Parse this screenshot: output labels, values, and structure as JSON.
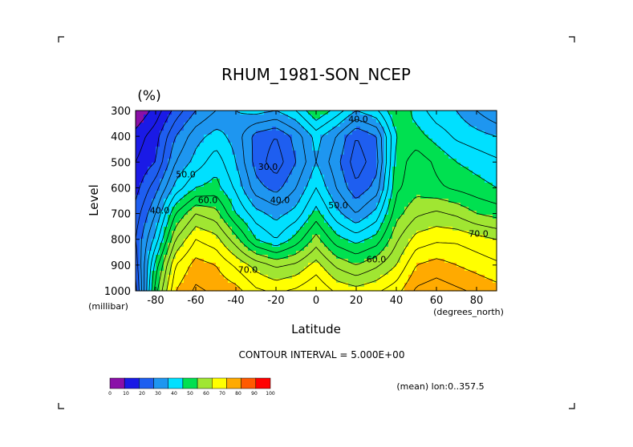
{
  "chart_data": {
    "type": "heatmap",
    "subtype": "filled-contour",
    "title": "RHUM_1981-SON_NCEP",
    "units_label": "(%)",
    "xlabel": "Latitude",
    "ylabel": "Level",
    "x_unit_label": "(degrees_north)",
    "y_unit_label": "(millibar)",
    "xlim": [
      -90,
      90
    ],
    "ylim": [
      1000,
      300
    ],
    "x_ticks": [
      -80,
      -60,
      -40,
      -20,
      0,
      20,
      40,
      60,
      80
    ],
    "x_tick_labels": [
      "-80",
      "-60",
      "-40",
      "-20",
      "0",
      "20",
      "40",
      "60",
      "80"
    ],
    "y_ticks": [
      300,
      400,
      500,
      600,
      700,
      800,
      900,
      1000
    ],
    "y_tick_labels": [
      "300",
      "400",
      "500",
      "600",
      "700",
      "800",
      "900",
      "1000"
    ],
    "contour_interval_text": "CONTOUR INTERVAL = 5.000E+00",
    "mean_text": "(mean) lon:0..357.5",
    "contour_labels": [
      {
        "text": "30.0",
        "lat": -24,
        "lev": 530
      },
      {
        "text": "40.0",
        "lat": 21,
        "lev": 345
      },
      {
        "text": "40.0",
        "lat": -18,
        "lev": 660
      },
      {
        "text": "40.0",
        "lat": -78,
        "lev": 700
      },
      {
        "text": "50.0",
        "lat": 11,
        "lev": 680
      },
      {
        "text": "50.0",
        "lat": -65,
        "lev": 560
      },
      {
        "text": "60.0",
        "lat": -54,
        "lev": 660
      },
      {
        "text": "60.0",
        "lat": 30,
        "lev": 890
      },
      {
        "text": "70.0",
        "lat": -34,
        "lev": 930
      },
      {
        "text": "70.0",
        "lat": 81,
        "lev": 790
      }
    ],
    "colorbar": {
      "bounds": [
        0,
        10,
        20,
        30,
        40,
        50,
        60,
        70,
        80,
        90,
        100
      ],
      "labels": [
        "0",
        "10",
        "20",
        "30",
        "40",
        "50",
        "60",
        "70",
        "80",
        "90",
        "100"
      ],
      "colors": [
        "#8a0fa8",
        "#1a1ae6",
        "#1e5ef0",
        "#1e96f0",
        "#00e0ff",
        "#00e050",
        "#a0e632",
        "#ffff00",
        "#ffaa00",
        "#ff5a00",
        "#ff0000"
      ]
    },
    "latitudes": [
      -90,
      -80,
      -70,
      -60,
      -50,
      -40,
      -30,
      -20,
      -10,
      0,
      10,
      20,
      30,
      40,
      50,
      60,
      70,
      80,
      90
    ],
    "levels": [
      300,
      400,
      500,
      600,
      700,
      800,
      900,
      1000
    ],
    "values": [
      [
        5,
        12,
        22,
        30,
        35,
        40,
        42,
        40,
        45,
        55,
        48,
        40,
        44,
        55,
        48,
        42,
        40,
        35,
        30
      ],
      [
        12,
        18,
        30,
        38,
        42,
        38,
        28,
        25,
        32,
        42,
        35,
        25,
        30,
        50,
        52,
        48,
        44,
        42,
        40
      ],
      [
        15,
        20,
        35,
        42,
        48,
        40,
        28,
        22,
        30,
        40,
        32,
        22,
        28,
        52,
        58,
        54,
        50,
        48,
        46
      ],
      [
        18,
        28,
        42,
        50,
        52,
        44,
        32,
        28,
        35,
        45,
        35,
        26,
        32,
        54,
        58,
        56,
        54,
        52,
        50
      ],
      [
        22,
        35,
        55,
        65,
        62,
        50,
        42,
        38,
        42,
        52,
        42,
        35,
        42,
        58,
        64,
        66,
        64,
        60,
        58
      ],
      [
        25,
        42,
        65,
        75,
        72,
        62,
        50,
        45,
        52,
        62,
        52,
        48,
        52,
        64,
        72,
        74,
        74,
        72,
        70
      ],
      [
        22,
        52,
        75,
        82,
        80,
        74,
        68,
        64,
        66,
        72,
        64,
        60,
        64,
        70,
        80,
        82,
        80,
        78,
        76
      ],
      [
        18,
        58,
        80,
        86,
        84,
        82,
        76,
        74,
        76,
        80,
        74,
        72,
        74,
        78,
        86,
        88,
        86,
        84,
        82
      ]
    ]
  }
}
